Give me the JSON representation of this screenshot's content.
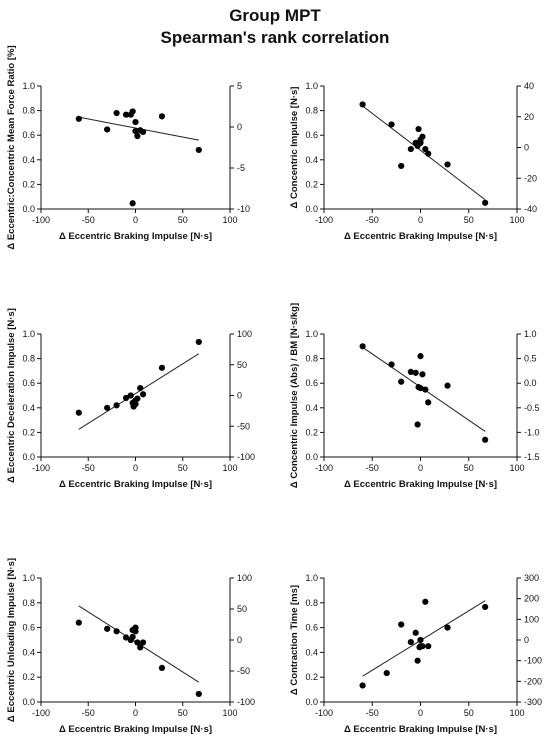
{
  "title_line1": "Group MPT",
  "title_line2": "Spearman's rank correlation",
  "chart_data": [
    {
      "type": "scatter",
      "xlabel": "Δ Eccentric Braking Impulse [N·s]",
      "ylabel": "Δ Eccentric:Concentric Mean Force Ratio [%]",
      "xlim": [
        -100,
        100
      ],
      "xticks": [
        -100,
        -50,
        0,
        50,
        100
      ],
      "y_left_lim": [
        0.0,
        1.0
      ],
      "y_left_ticks": [
        "0.0",
        "0.2",
        "0.4",
        "0.6",
        "0.8",
        "1.0"
      ],
      "y_right_lim": [
        -10,
        5
      ],
      "y_right_ticks": [
        "-10",
        "-5",
        "0",
        "5"
      ],
      "x": [
        -60,
        -30,
        -20,
        -10,
        -5,
        -3,
        0,
        0,
        2,
        5,
        8,
        28,
        67,
        -3
      ],
      "y": [
        1.0,
        -0.3,
        1.7,
        1.5,
        1.5,
        1.9,
        0.6,
        -0.5,
        -1.1,
        -0.4,
        -0.6,
        1.3,
        -2.8,
        -9.3
      ],
      "trend": {
        "x": [
          -60,
          67
        ],
        "y": [
          1.2,
          -1.6
        ]
      }
    },
    {
      "type": "scatter",
      "xlabel": "Δ Eccentric Braking Impulse [N·s]",
      "ylabel": "Δ Concentric Impulse [N·s]",
      "xlim": [
        -100,
        100
      ],
      "xticks": [
        -100,
        -50,
        0,
        50,
        100
      ],
      "y_left_lim": [
        0.0,
        1.0
      ],
      "y_left_ticks": [
        "0.0",
        "0.2",
        "0.4",
        "0.6",
        "0.8",
        "1.0"
      ],
      "y_right_lim": [
        -40,
        40
      ],
      "y_right_ticks": [
        "-40",
        "-20",
        "0",
        "20",
        "40"
      ],
      "x": [
        -60,
        -30,
        -20,
        -10,
        -5,
        -3,
        0,
        0,
        2,
        5,
        8,
        28,
        67,
        -2
      ],
      "y": [
        28,
        15,
        -12,
        -1,
        3,
        1,
        3,
        5,
        7,
        -1,
        -4,
        -11,
        -36,
        12
      ],
      "trend": {
        "x": [
          -60,
          67
        ],
        "y": [
          27,
          -34
        ]
      }
    },
    {
      "type": "scatter",
      "xlabel": "Δ Eccentric Braking Impulse [N·s]",
      "ylabel": "Δ Eccentric Deceleration Impulse [N·s]",
      "xlim": [
        -100,
        100
      ],
      "xticks": [
        -100,
        -50,
        0,
        50,
        100
      ],
      "y_left_lim": [
        0.0,
        1.0
      ],
      "y_left_ticks": [
        "0.0",
        "0.2",
        "0.4",
        "0.6",
        "0.8",
        "1.0"
      ],
      "y_right_lim": [
        -100,
        100
      ],
      "y_right_ticks": [
        "-100",
        "-50",
        "0",
        "50",
        "100"
      ],
      "x": [
        -60,
        -30,
        -20,
        -10,
        -5,
        -3,
        0,
        0,
        2,
        5,
        8,
        28,
        67,
        -2
      ],
      "y": [
        -28,
        -20,
        -16,
        -4,
        0,
        -12,
        -14,
        -8,
        -5,
        12,
        2,
        45,
        87,
        -18
      ],
      "trend": {
        "x": [
          -60,
          67
        ],
        "y": [
          -55,
          68
        ]
      }
    },
    {
      "type": "scatter",
      "xlabel": "Δ Eccentric Braking Impulse [N·s]",
      "ylabel": "Δ Concentric Impulse (Abs) / BM [N·s/kg]",
      "xlim": [
        -100,
        100
      ],
      "xticks": [
        -100,
        -50,
        0,
        50,
        100
      ],
      "y_left_lim": [
        0.0,
        1.0
      ],
      "y_left_ticks": [
        "0.0",
        "0.2",
        "0.4",
        "0.6",
        "0.8",
        "1.0"
      ],
      "y_right_lim": [
        -1.5,
        1.0
      ],
      "y_right_ticks": [
        "-1.5",
        "-1.0",
        "-0.5",
        "0.0",
        "0.5",
        "1.0"
      ],
      "x": [
        -60,
        -30,
        -20,
        -10,
        -5,
        -3,
        0,
        0,
        2,
        5,
        8,
        28,
        67,
        -2
      ],
      "y": [
        0.75,
        0.38,
        0.03,
        0.23,
        0.21,
        -0.84,
        0.55,
        -0.1,
        0.18,
        -0.13,
        -0.39,
        -0.05,
        -1.15,
        -0.08
      ],
      "trend": {
        "x": [
          -60,
          67
        ],
        "y": [
          0.73,
          -0.98
        ]
      }
    },
    {
      "type": "scatter",
      "xlabel": "Δ Eccentric Braking Impulse [N·s]",
      "ylabel": "Δ Eccentric Unloading Impulse [N·s]",
      "xlim": [
        -100,
        100
      ],
      "xticks": [
        -100,
        -50,
        0,
        50,
        100
      ],
      "y_left_lim": [
        0.0,
        1.0
      ],
      "y_left_ticks": [
        "0.0",
        "0.2",
        "0.4",
        "0.6",
        "0.8",
        "1.0"
      ],
      "y_right_lim": [
        -100,
        100
      ],
      "y_right_ticks": [
        "-100",
        "-50",
        "0",
        "50",
        "100"
      ],
      "x": [
        -60,
        -30,
        -20,
        -10,
        -5,
        -3,
        0,
        0,
        2,
        5,
        8,
        28,
        67,
        -3
      ],
      "y": [
        28,
        18,
        14,
        4,
        0,
        16,
        20,
        14,
        -4,
        -12,
        -4,
        -45,
        -87,
        5
      ],
      "trend": {
        "x": [
          -60,
          67
        ],
        "y": [
          55,
          -68
        ]
      }
    },
    {
      "type": "scatter",
      "xlabel": "Δ Eccentric Braking Impulse [N·s]",
      "ylabel": "Δ Contraction Time [ms]",
      "xlim": [
        -100,
        100
      ],
      "xticks": [
        -100,
        -50,
        0,
        50,
        100
      ],
      "y_left_lim": [
        0.0,
        1.0
      ],
      "y_left_ticks": [
        "0.0",
        "0.2",
        "0.4",
        "0.6",
        "0.8",
        "1.0"
      ],
      "y_right_lim": [
        -300,
        300
      ],
      "y_right_ticks": [
        "-300",
        "-200",
        "-100",
        "0",
        "100",
        "200",
        "300"
      ],
      "x": [
        -60,
        -35,
        -20,
        -10,
        -5,
        -3,
        0,
        0,
        2,
        5,
        8,
        28,
        67,
        -1
      ],
      "y": [
        -220,
        -160,
        75,
        -10,
        35,
        -100,
        0,
        -30,
        -30,
        185,
        -30,
        60,
        160,
        -35
      ],
      "trend": {
        "x": [
          -60,
          67
        ],
        "y": [
          -175,
          190
        ]
      }
    }
  ]
}
